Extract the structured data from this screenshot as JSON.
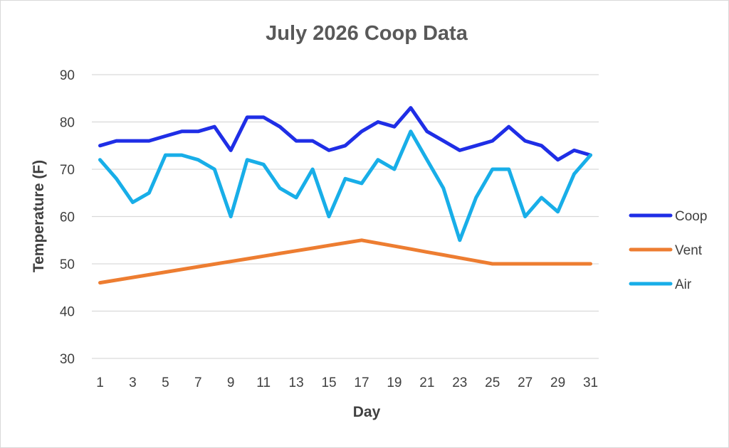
{
  "chart_data": {
    "type": "line",
    "title": "July 2026 Coop Data",
    "xlabel": "Day",
    "ylabel": "Temperature (F)",
    "x": [
      1,
      2,
      3,
      4,
      5,
      6,
      7,
      8,
      9,
      10,
      11,
      12,
      13,
      14,
      15,
      16,
      17,
      18,
      19,
      20,
      21,
      22,
      23,
      24,
      25,
      26,
      27,
      28,
      29,
      30,
      31
    ],
    "x_tick_labels": [
      "1",
      "3",
      "5",
      "7",
      "9",
      "11",
      "13",
      "15",
      "17",
      "19",
      "21",
      "23",
      "25",
      "27",
      "29",
      "31"
    ],
    "ylim": [
      30,
      90
    ],
    "y_ticks": [
      30,
      40,
      50,
      60,
      70,
      80,
      90
    ],
    "grid": "horizontal",
    "legend_position": "right",
    "series": [
      {
        "name": "Coop",
        "color": "#1f2ee6",
        "values": [
          75,
          76,
          76,
          76,
          77,
          78,
          78,
          79,
          74,
          81,
          81,
          79,
          76,
          76,
          74,
          75,
          78,
          80,
          79,
          83,
          78,
          76,
          74,
          75,
          76,
          79,
          76,
          75,
          72,
          74,
          73
        ]
      },
      {
        "name": "Vent",
        "color": "#ed7d31",
        "values": [
          46,
          46.56,
          47.13,
          47.69,
          48.25,
          48.81,
          49.38,
          49.94,
          50.5,
          51.06,
          51.63,
          52.19,
          52.75,
          53.31,
          53.88,
          54.44,
          55,
          54.38,
          53.75,
          53.13,
          52.5,
          51.88,
          51.25,
          50.63,
          50,
          50,
          50,
          50,
          50,
          50,
          50
        ]
      },
      {
        "name": "Air",
        "color": "#18aee8",
        "values": [
          72,
          68,
          63,
          65,
          73,
          73,
          72,
          70,
          60,
          72,
          71,
          66,
          64,
          70,
          60,
          68,
          67,
          72,
          70,
          78,
          72,
          66,
          55,
          64,
          70,
          70,
          60,
          64,
          61,
          69,
          73
        ]
      }
    ]
  }
}
